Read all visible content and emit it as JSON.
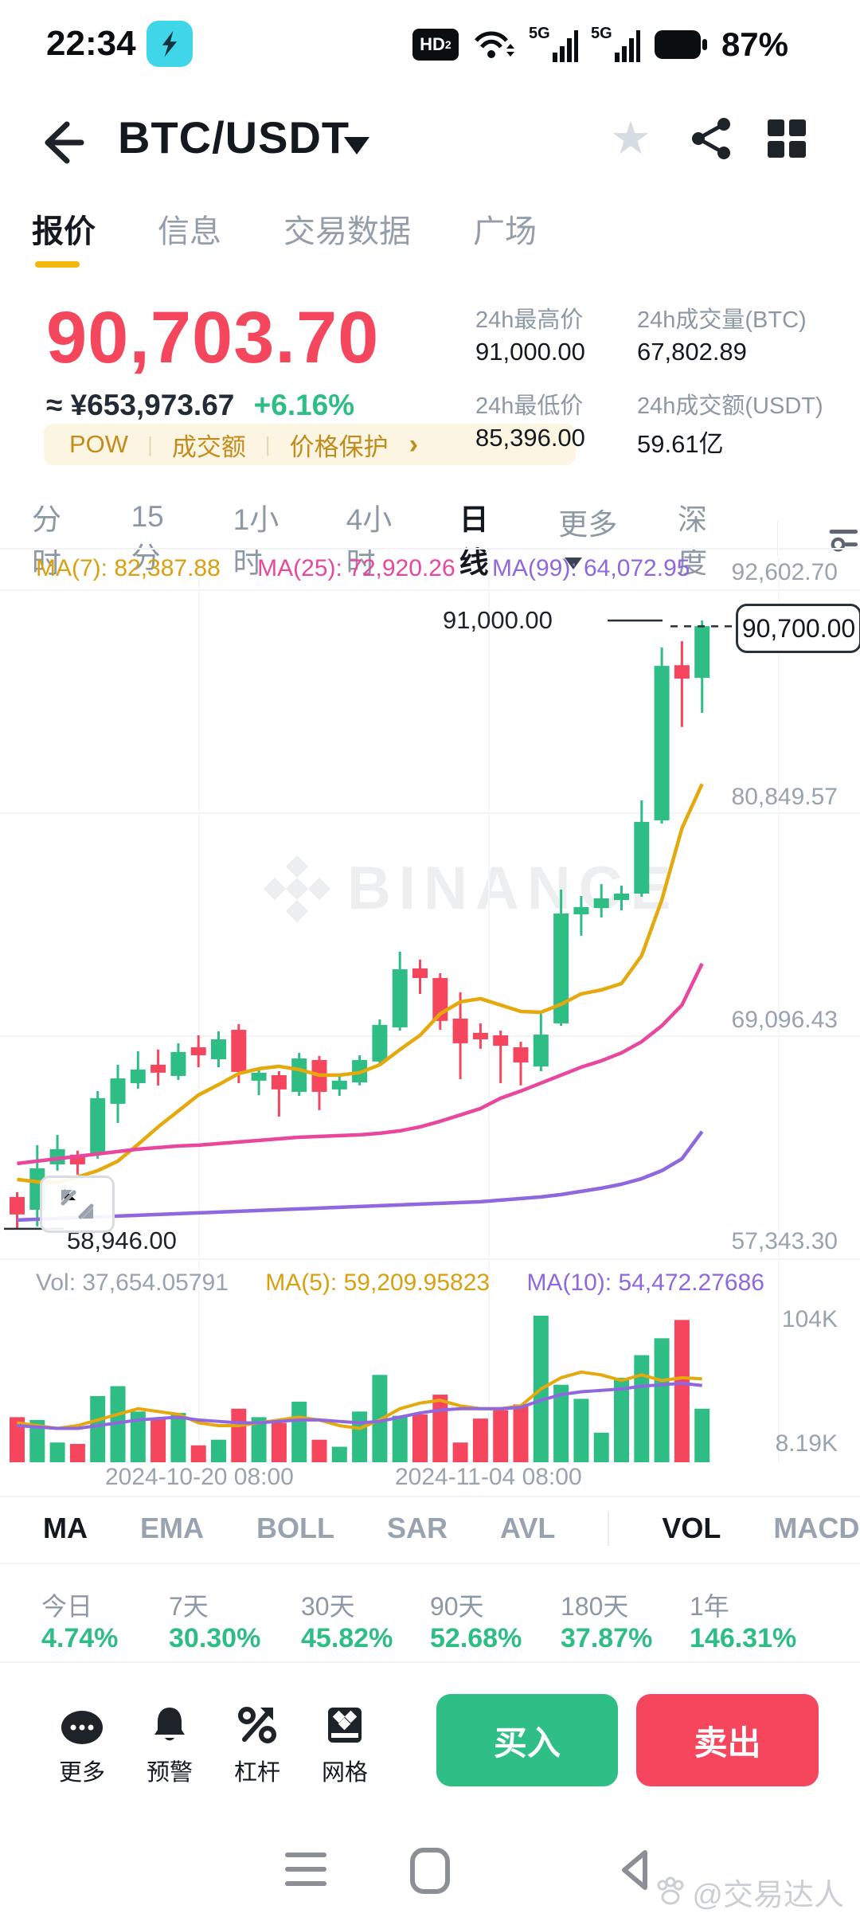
{
  "status_bar": {
    "time": "22:34",
    "battery_pct": "87%",
    "hd_badge": "HD",
    "signal_label": "5G"
  },
  "header": {
    "pair": "BTC/USDT"
  },
  "nav_tabs": [
    {
      "label": "报价"
    },
    {
      "label": "信息"
    },
    {
      "label": "交易数据"
    },
    {
      "label": "广场"
    }
  ],
  "price_panel": {
    "last_price": "90,703.70",
    "fiat_value": "≈ ¥653,973.67",
    "change_pct": "+6.16%",
    "tags": [
      "POW",
      "成交额",
      "价格保护"
    ],
    "chevron": "›"
  },
  "stats": [
    {
      "label": "24h最高价",
      "value": "91,000.00"
    },
    {
      "label": "24h成交量(BTC)",
      "value": "67,802.89"
    },
    {
      "label": "24h最低价",
      "value": "85,396.00"
    },
    {
      "label": "24h成交额(USDT)",
      "value": "59.61亿"
    }
  ],
  "timeframes": [
    "分时",
    "15分",
    "1小时",
    "4小时",
    "日线",
    "更多",
    "深度"
  ],
  "chart_data": {
    "type": "candlestick+volume",
    "title": "BTC/USDT daily candles",
    "overlay_labels": {
      "ma7": "MA(7): 82,387.88",
      "ma25": "MA(25): 72,920.26",
      "ma99": "MA(99): 64,072.95",
      "vol": "Vol: 37,654.05791",
      "vol_ma5": "MA(5): 59,209.95823",
      "vol_ma10": "MA(10): 54,472.27686"
    },
    "y_axis_labels": [
      "92,602.70",
      "80,849.57",
      "69,096.43",
      "57,343.30"
    ],
    "price_axis_range": {
      "top": 92602.7,
      "bottom": 57343.3
    },
    "price_line": {
      "high_label": "91,000.00",
      "current_label": "90,700.00",
      "high_value": 91000.0,
      "current_value": 90700.0
    },
    "low_label": "58,946.00",
    "low_value": 58946.0,
    "x_axis_labels": [
      "2024-10-20 08:00",
      "2024-11-04 08:00"
    ],
    "vol_axis": {
      "max_label": "104K",
      "min_label": "8.19K",
      "max_value": 104,
      "min_value": 8.19,
      "unit": "K"
    },
    "ohlcv_order": [
      "open",
      "high",
      "low",
      "close",
      "volumeK"
    ],
    "candles": [
      [
        60620,
        60870,
        58946,
        59700,
        32
      ],
      [
        59950,
        63350,
        59070,
        62130,
        30
      ],
      [
        62340,
        63890,
        62010,
        63140,
        14
      ],
      [
        62850,
        63060,
        61800,
        62340,
        13
      ],
      [
        62850,
        66200,
        62640,
        65830,
        47
      ],
      [
        65530,
        67590,
        64520,
        66870,
        54
      ],
      [
        66620,
        68300,
        66330,
        67340,
        36
      ],
      [
        67590,
        68390,
        66500,
        67170,
        31
      ],
      [
        67000,
        68720,
        66790,
        68260,
        35
      ],
      [
        68510,
        69140,
        67460,
        68090,
        12
      ],
      [
        67880,
        69350,
        67460,
        68930,
        16
      ],
      [
        69430,
        69730,
        66620,
        67210,
        38
      ],
      [
        66750,
        67460,
        65990,
        67170,
        32
      ],
      [
        67040,
        67250,
        64860,
        66290,
        28
      ],
      [
        66160,
        68220,
        65950,
        67920,
        43
      ],
      [
        67840,
        68050,
        65200,
        66160,
        16
      ],
      [
        66290,
        67040,
        65950,
        66750,
        11
      ],
      [
        66660,
        68090,
        66500,
        67840,
        36
      ],
      [
        67760,
        69980,
        67590,
        69690,
        62
      ],
      [
        69560,
        73550,
        69390,
        72620,
        33
      ],
      [
        72670,
        73130,
        71320,
        72160,
        34
      ],
      [
        72160,
        72410,
        69430,
        69900,
        48
      ],
      [
        70020,
        71410,
        66830,
        68720,
        14
      ],
      [
        69270,
        69770,
        68430,
        68930,
        31
      ],
      [
        69140,
        69390,
        66620,
        68590,
        37
      ],
      [
        68510,
        68800,
        66500,
        67710,
        41
      ],
      [
        67500,
        70400,
        67250,
        69180,
        104
      ],
      [
        69770,
        76820,
        69640,
        75560,
        55
      ],
      [
        75520,
        76480,
        74390,
        75900,
        45
      ],
      [
        75850,
        77110,
        75350,
        76360,
        21
      ],
      [
        76270,
        77030,
        75730,
        76610,
        60
      ],
      [
        76610,
        81520,
        76440,
        80390,
        76
      ],
      [
        80470,
        89580,
        80300,
        88610,
        88
      ],
      [
        88650,
        89910,
        85396,
        87940,
        101
      ],
      [
        87980,
        91000,
        86140,
        90703.7,
        38
      ]
    ],
    "series": [
      {
        "name": "MA7",
        "color": "#E5A80D",
        "values": [
          61545,
          61419,
          61377,
          61671,
          62007,
          62510,
          63392,
          64315,
          65154,
          65994,
          66539,
          67127,
          67379,
          67505,
          67337,
          67043,
          67043,
          67169,
          67589,
          68386,
          69141,
          70274,
          70904,
          71072,
          70736,
          70400,
          70358,
          70778,
          71324,
          71533,
          71869,
          73338,
          76276,
          80053,
          82388
        ]
      },
      {
        "name": "MA25",
        "color": "#E9469E",
        "values": [
          62384,
          62510,
          62636,
          62762,
          62888,
          63014,
          63140,
          63224,
          63308,
          63350,
          63434,
          63517,
          63601,
          63685,
          63769,
          63811,
          63853,
          63895,
          63979,
          64105,
          64315,
          64609,
          64944,
          65280,
          65826,
          66203,
          66623,
          67043,
          67463,
          67798,
          68218,
          68806,
          69645,
          70736,
          72920
        ]
      },
      {
        "name": "MA99",
        "color": "#8F67DE",
        "values": [
          59404,
          59446,
          59488,
          59530,
          59572,
          59614,
          59656,
          59698,
          59740,
          59782,
          59824,
          59866,
          59908,
          59950,
          59992,
          60034,
          60076,
          60118,
          60160,
          60202,
          60244,
          60286,
          60328,
          60370,
          60454,
          60538,
          60622,
          60748,
          60916,
          61084,
          61294,
          61587,
          62007,
          62636,
          64073
        ]
      }
    ],
    "volume_series": [
      {
        "name": "VolMA5",
        "color": "#E5A80D",
        "values": [
          28,
          26,
          24,
          26,
          30,
          34,
          38,
          36,
          34,
          28,
          26,
          26,
          28,
          30,
          32,
          30,
          26,
          24,
          30,
          38,
          42,
          44,
          40,
          38,
          38,
          40,
          52,
          60,
          64,
          62,
          58,
          62,
          58,
          60,
          59.2
        ]
      },
      {
        "name": "VolMA10",
        "color": "#8F67DE",
        "values": [
          26,
          25,
          24,
          24,
          26,
          28,
          30,
          31,
          32,
          30,
          29,
          28,
          28,
          29,
          30,
          30,
          29,
          28,
          29,
          32,
          35,
          37,
          38,
          38,
          38,
          39,
          44,
          48,
          50,
          51,
          52,
          54,
          55,
          56,
          54.5
        ]
      }
    ],
    "colors": {
      "up": "#2EBD85",
      "down": "#F6465D",
      "grid": "#F2F3F5"
    },
    "grid_prices": [
      92602.7,
      80849.57,
      69096.43,
      57343.3
    ]
  },
  "indicator_tabs": [
    "MA",
    "EMA",
    "BOLL",
    "SAR",
    "AVL",
    "VOL",
    "MACD"
  ],
  "performance": [
    {
      "label": "今日",
      "value": "4.74%"
    },
    {
      "label": "7天",
      "value": "30.30%"
    },
    {
      "label": "30天",
      "value": "45.82%"
    },
    {
      "label": "90天",
      "value": "52.68%"
    },
    {
      "label": "180天",
      "value": "37.87%"
    },
    {
      "label": "1年",
      "value": "146.31%"
    }
  ],
  "actions": {
    "more": "更多",
    "alert": "预警",
    "leverage": "杠杆",
    "grid": "网格",
    "buy": "买入",
    "sell": "卖出"
  },
  "watermark_text": "BINANCE",
  "credit": "@交易达人"
}
